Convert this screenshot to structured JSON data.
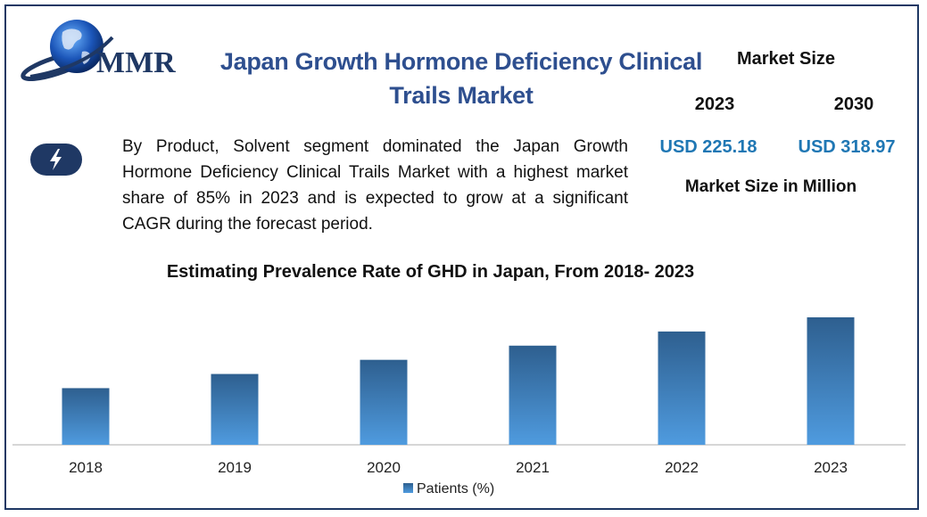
{
  "logo": {
    "text": "MMR",
    "icon": "globe-icon"
  },
  "title": "Japan Growth Hormone Deficiency Clinical Trails Market",
  "market": {
    "label": "Market Size",
    "years": [
      "2023",
      "2030"
    ],
    "values": [
      "USD 225.18",
      "USD 318.97"
    ],
    "unit_label": "Market Size in Million",
    "value_color": "#1f77b4"
  },
  "description": {
    "icon": "lightning-icon",
    "text": "By Product, Solvent segment dominated the Japan Growth Hormone Deficiency Clinical Trails Market with a highest market share of 85% in 2023 and is expected to grow at a significant CAGR during the forecast period."
  },
  "chart_data": {
    "type": "bar",
    "title": "Estimating Prevalence Rate of GHD in  Japan, From 2018- 2023",
    "categories": [
      "2018",
      "2019",
      "2020",
      "2021",
      "2022",
      "2023"
    ],
    "series": [
      {
        "name": "Patients (%)",
        "values": [
          4,
          5,
          6,
          7,
          8,
          9
        ]
      }
    ],
    "ylim": [
      0,
      9
    ],
    "grid": false,
    "legend": "bottom",
    "color_top": "#2e5f8f",
    "color_bottom": "#4f9bdf"
  }
}
